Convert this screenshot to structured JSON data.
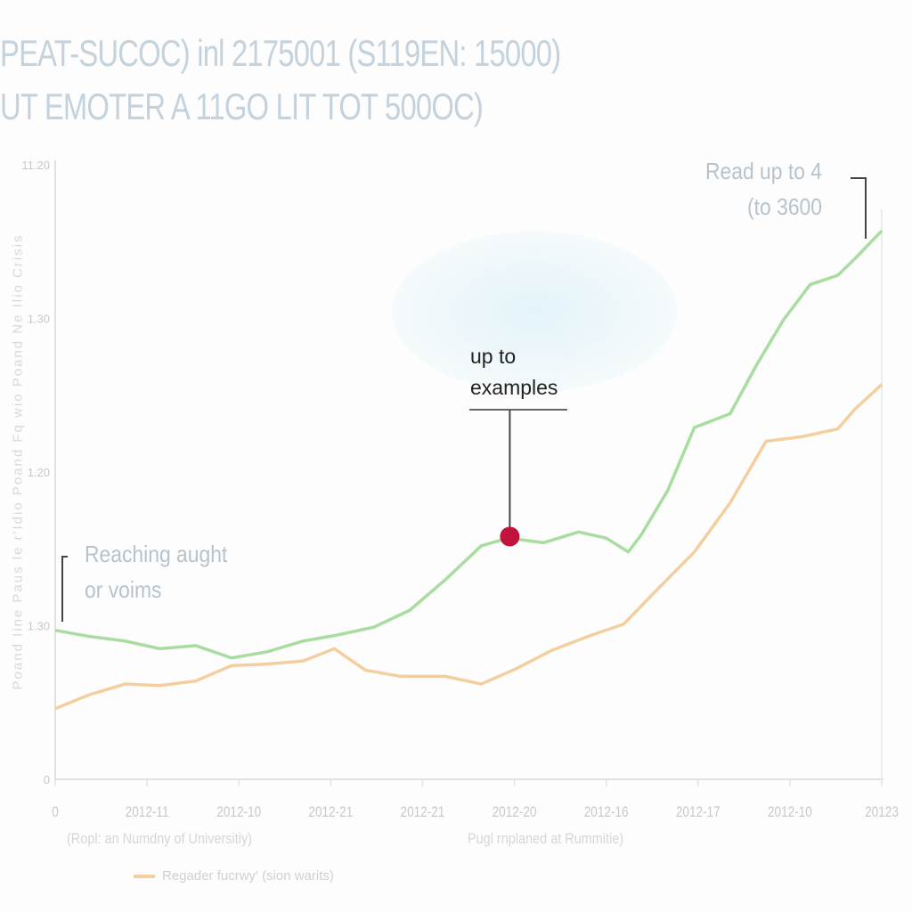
{
  "title_lines": [
    "PEAT-SUCOC) inl 2175001 (S119EN: 15000)",
    "UT EMOTER A 11GO LIT TOT 500OC)"
  ],
  "chart_data": {
    "type": "line",
    "ylabel": "Poand Iine   Paus le r'Idio   Poand Fq wio   Poand Ne Ilio   Crisis",
    "y_ticks": [
      {
        "value": 0,
        "label": "0"
      },
      {
        "value": 1,
        "label": "1.30"
      },
      {
        "value": 2,
        "label": "1.20"
      },
      {
        "value": 3,
        "label": "1.30"
      },
      {
        "value": 4,
        "label": "11.20"
      }
    ],
    "ylim": [
      0,
      4
    ],
    "x_ticks": [
      "0",
      "2012-11",
      "2012-10",
      "2012-21",
      "2012-21",
      "2012-20",
      "2012-16",
      "2012-17",
      "2012-10",
      "20123"
    ],
    "xlim": [
      0,
      9
    ],
    "x_sublabels": [
      "(Ropl: an Numdny of Universitiy)",
      "Pugl rnplaned at Rummitie)"
    ],
    "grid": false,
    "legend_position": "bottom-left",
    "series": [
      {
        "color": "#a9dca0",
        "points": [
          [
            0,
            0.97
          ],
          [
            0.37,
            0.93
          ],
          [
            0.76,
            0.9
          ],
          [
            1.14,
            0.85
          ],
          [
            1.53,
            0.87
          ],
          [
            1.92,
            0.79
          ],
          [
            2.31,
            0.83
          ],
          [
            2.7,
            0.9
          ],
          [
            3.08,
            0.94
          ],
          [
            3.47,
            0.99
          ],
          [
            3.86,
            1.1
          ],
          [
            4.25,
            1.3
          ],
          [
            4.64,
            1.52
          ],
          [
            4.93,
            1.57
          ],
          [
            5.32,
            1.54
          ],
          [
            5.7,
            1.61
          ],
          [
            6.0,
            1.57
          ],
          [
            6.24,
            1.48
          ],
          [
            6.38,
            1.59
          ],
          [
            6.67,
            1.88
          ],
          [
            6.96,
            2.29
          ],
          [
            7.35,
            2.38
          ],
          [
            7.64,
            2.7
          ],
          [
            7.93,
            2.99
          ],
          [
            8.22,
            3.22
          ],
          [
            8.52,
            3.28
          ],
          [
            8.71,
            3.39
          ],
          [
            9.0,
            3.57
          ]
        ]
      },
      {
        "name": "Regader fucrwy' (sion warits)",
        "color": "#f3cfa0",
        "points": [
          [
            0,
            0.46
          ],
          [
            0.37,
            0.55
          ],
          [
            0.76,
            0.62
          ],
          [
            1.14,
            0.61
          ],
          [
            1.53,
            0.64
          ],
          [
            1.92,
            0.74
          ],
          [
            2.31,
            0.75
          ],
          [
            2.7,
            0.77
          ],
          [
            3.04,
            0.85
          ],
          [
            3.38,
            0.71
          ],
          [
            3.76,
            0.67
          ],
          [
            4.25,
            0.67
          ],
          [
            4.64,
            0.62
          ],
          [
            5.02,
            0.72
          ],
          [
            5.41,
            0.84
          ],
          [
            5.8,
            0.93
          ],
          [
            6.19,
            1.01
          ],
          [
            6.58,
            1.25
          ],
          [
            6.96,
            1.48
          ],
          [
            7.35,
            1.8
          ],
          [
            7.74,
            2.2
          ],
          [
            8.13,
            2.23
          ],
          [
            8.52,
            2.28
          ],
          [
            8.71,
            2.41
          ],
          [
            9.0,
            2.57
          ]
        ]
      }
    ],
    "highlight_point": {
      "x": 4.95,
      "y": 1.58,
      "color": "#c0143c"
    },
    "annotations": {
      "highlight": [
        "up to",
        "examples"
      ],
      "top_right": [
        "Read up to 4",
        "(to 3600"
      ],
      "left": [
        "Reaching aught",
        "or voims"
      ]
    }
  }
}
